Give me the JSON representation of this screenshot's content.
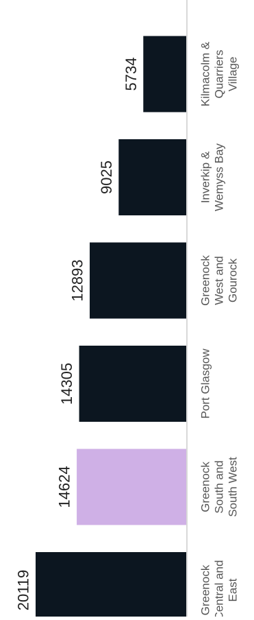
{
  "chart_data": {
    "type": "bar",
    "orientation": "horizontal",
    "categories": [
      "Greenock Central and East",
      "Greenock South and South West",
      "Port Glasgow",
      "Greenock West and Gourock",
      "Inverkip & Wemyss Bay",
      "Kilmacolm & Quarriers Village"
    ],
    "category_lines": [
      [
        "Greenock",
        "Central and",
        "East"
      ],
      [
        "Greenock",
        "South and",
        "South West"
      ],
      [
        "Port Glasgow"
      ],
      [
        "Greenock",
        "West and",
        "Gourock"
      ],
      [
        "Inverkip &",
        "Wemyss Bay"
      ],
      [
        "Kilmacolm &",
        "Quarriers",
        "Village"
      ]
    ],
    "values": [
      20119,
      14624,
      14305,
      12893,
      9025,
      5734
    ],
    "value_labels": [
      "20119",
      "14624",
      "14305",
      "12893",
      "9025",
      "5734"
    ],
    "highlight_index": 1,
    "colors": {
      "bar": "#0c1620",
      "highlight": "#cfb0e6",
      "baseline": "#cccccc",
      "label": "#555555",
      "value_text": "#222222"
    },
    "xlim": [
      0,
      20119
    ],
    "grid": false,
    "legend": "none",
    "title": "",
    "xlabel": "",
    "ylabel": ""
  }
}
